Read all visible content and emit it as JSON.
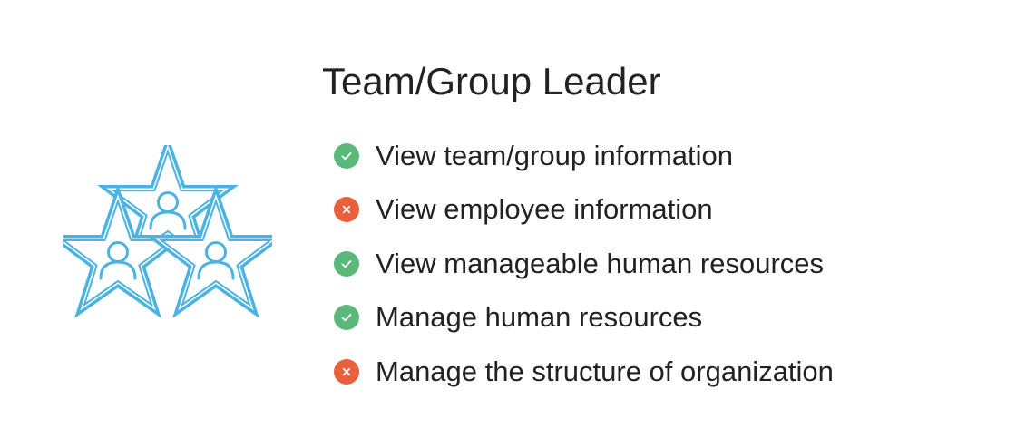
{
  "title": "Team/Group Leader",
  "colors": {
    "allowed": "#5cb87a",
    "denied": "#e8603c",
    "emblem": "#4bb3e1",
    "text": "#222222"
  },
  "emblem_icon": "team-stars-icon",
  "permissions": [
    {
      "label": "View team/group information",
      "status": "allowed"
    },
    {
      "label": "View employee information",
      "status": "denied"
    },
    {
      "label": "View manageable human resources",
      "status": "allowed"
    },
    {
      "label": "Manage human resources",
      "status": "allowed"
    },
    {
      "label": "Manage the structure of organization",
      "status": "denied"
    }
  ]
}
